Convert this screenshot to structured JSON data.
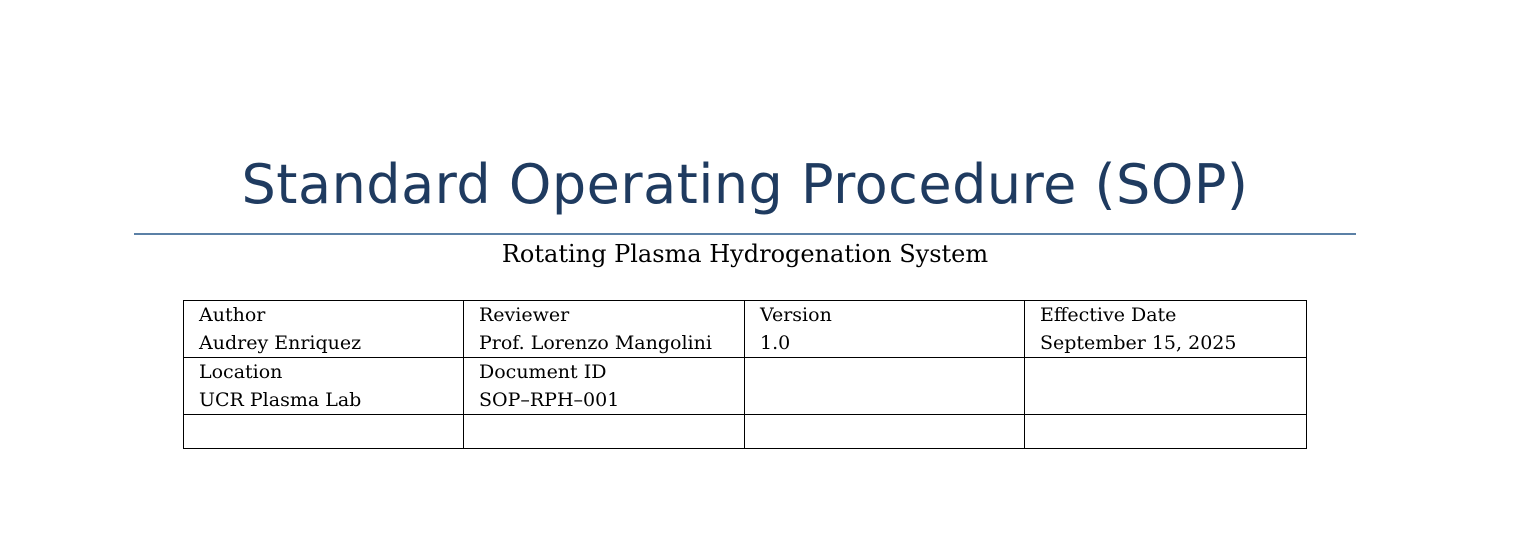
{
  "document": {
    "title": "Standard Operating Procedure (SOP)",
    "subtitle": "Rotating Plasma Hydrogenation System"
  },
  "info_table": {
    "rows": [
      [
        {
          "label": "Author",
          "value": "Audrey Enriquez"
        },
        {
          "label": "Reviewer",
          "value": "Prof. Lorenzo Mangolini"
        },
        {
          "label": "Version",
          "value": "1.0"
        },
        {
          "label": "Effective Date",
          "value": "September 15, 2025"
        }
      ],
      [
        {
          "label": "Location",
          "value": "UCR Plasma Lab"
        },
        {
          "label": "Document ID",
          "value": "SOP–RPH–001"
        },
        {
          "label": "",
          "value": ""
        },
        {
          "label": "",
          "value": ""
        }
      ],
      [
        {
          "label": "",
          "value": ""
        },
        {
          "label": "",
          "value": ""
        },
        {
          "label": "",
          "value": ""
        },
        {
          "label": "",
          "value": ""
        }
      ]
    ]
  },
  "colors": {
    "title": "#1f3b60",
    "rule": "#5b80a6",
    "text": "#000000",
    "border": "#000000"
  }
}
